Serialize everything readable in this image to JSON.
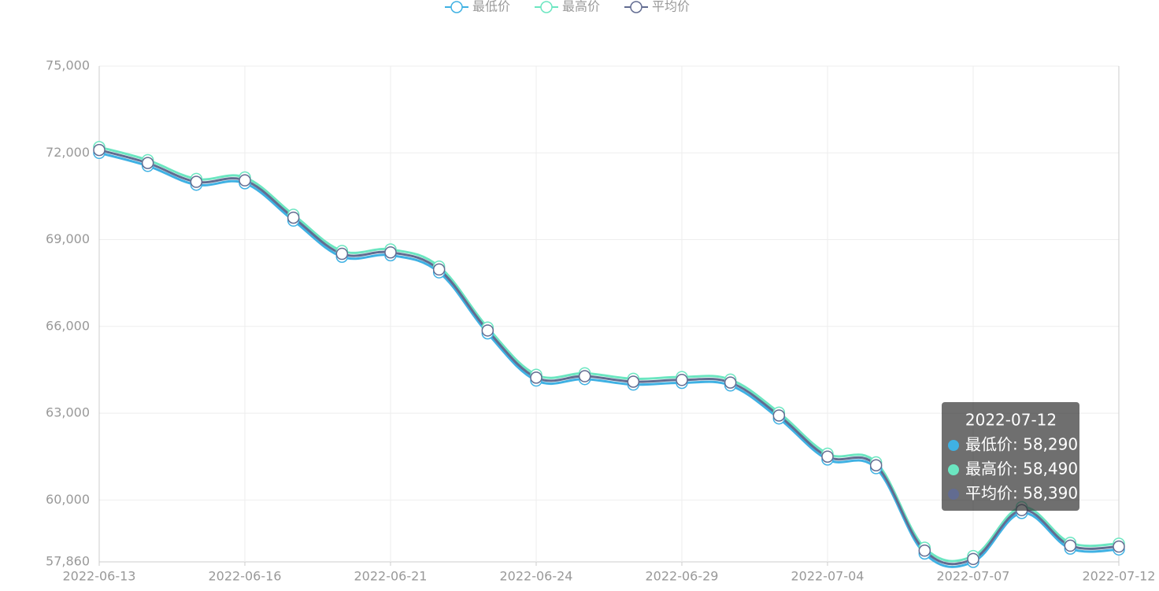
{
  "chart_data": {
    "type": "line",
    "categories": [
      "2022-06-13",
      null,
      null,
      "2022-06-16",
      null,
      null,
      "2022-06-21",
      null,
      null,
      "2022-06-24",
      null,
      null,
      "2022-06-29",
      null,
      null,
      "2022-07-04",
      null,
      null,
      "2022-07-07",
      null,
      null,
      "2022-07-12"
    ],
    "series": [
      {
        "name": "最低价",
        "color": "#3fb1e3",
        "values": [
          72000,
          71550,
          70900,
          70950,
          69660,
          68410,
          68460,
          67870,
          65760,
          64130,
          64180,
          63990,
          64050,
          63960,
          62820,
          61400,
          61100,
          58150,
          57860,
          59550,
          58320,
          58290
        ]
      },
      {
        "name": "最高价",
        "color": "#6be6c1",
        "values": [
          72200,
          71750,
          71100,
          71150,
          69860,
          68610,
          68660,
          68070,
          65960,
          64330,
          64380,
          64190,
          64250,
          64160,
          63020,
          61600,
          61300,
          58350,
          58060,
          59750,
          58520,
          58490
        ]
      },
      {
        "name": "平均价",
        "color": "#626c91",
        "values": [
          72100,
          71650,
          71000,
          71050,
          69760,
          68510,
          68560,
          67970,
          65860,
          64230,
          64280,
          64090,
          64150,
          64060,
          62920,
          61500,
          61200,
          58250,
          57960,
          59650,
          58420,
          58390
        ]
      }
    ],
    "ylim": [
      57860,
      75000
    ],
    "yticks": [
      {
        "value": 57860,
        "label": "57,860"
      },
      {
        "value": 60000,
        "label": "60,000"
      },
      {
        "value": 63000,
        "label": "63,000"
      },
      {
        "value": 66000,
        "label": "66,000"
      },
      {
        "value": 69000,
        "label": "69,000"
      },
      {
        "value": 72000,
        "label": "72,000"
      },
      {
        "value": 75000,
        "label": "75,000"
      }
    ],
    "grid": true,
    "legend": "top",
    "tooltip": {
      "title": "2022-07-12",
      "entries": [
        "最低价: 58,290",
        "最高价: 58,490",
        "平均价: 58,390"
      ]
    }
  }
}
